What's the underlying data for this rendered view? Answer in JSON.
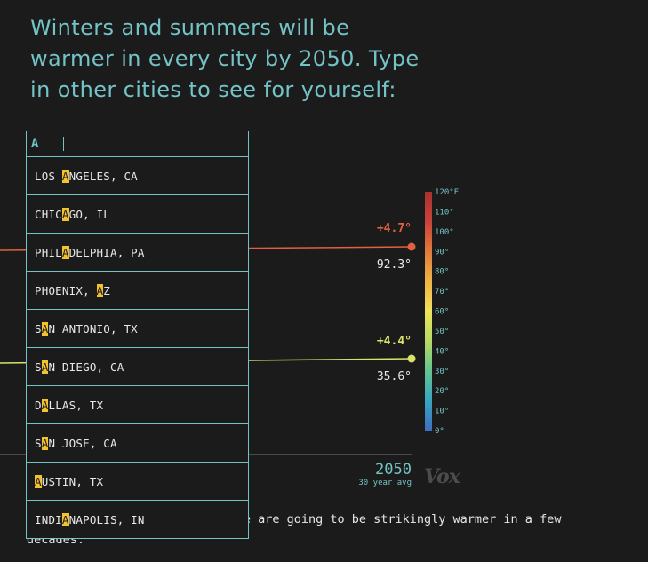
{
  "headline": "Winters and summers will be warmer in every city by 2050. Type in other cities to see for yourself:",
  "search": {
    "value": "A",
    "query": "A",
    "results": [
      {
        "label": "LOS ANGELES, CA"
      },
      {
        "label": "CHICAGO, IL"
      },
      {
        "label": "PHILADELPHIA, PA"
      },
      {
        "label": "PHOENIX, AZ"
      },
      {
        "label": "SAN ANTONIO, TX"
      },
      {
        "label": "SAN DIEGO, CA"
      },
      {
        "label": "DALLAS, TX"
      },
      {
        "label": "SAN JOSE, CA"
      },
      {
        "label": "AUSTIN, TX"
      },
      {
        "label": "INDIANAPOLIS, IN"
      }
    ]
  },
  "chart": {
    "year_label": "2050",
    "avg_label": "30 year avg",
    "colors": {
      "summer": "#e2603e",
      "winter": "#d9e36a",
      "axis": "#74c3c7"
    }
  },
  "chart_data": {
    "type": "line",
    "x": [
      "2050"
    ],
    "series": [
      {
        "change": "+4.7°",
        "end_value": 92.3,
        "end_label": "92.3°"
      },
      {
        "change": "+4.4°",
        "end_value": 35.6,
        "end_label": "35.6°"
      }
    ],
    "color_scale": {
      "unit": "°F",
      "range": [
        0,
        120
      ],
      "tick_labels": [
        "120°F",
        "110°",
        "100°",
        "90°",
        "80°",
        "70°",
        "60°",
        "50°",
        "40°",
        "30°",
        "20°",
        "10°",
        "0°"
      ],
      "colors": [
        "#3d6fbf",
        "#3aa3c4",
        "#63c48f",
        "#b6da64",
        "#efe25a",
        "#f0b347",
        "#e07a3a",
        "#c8433a",
        "#a8322e"
      ]
    }
  },
  "logo": "Vox",
  "body_text": "In any case, the places we live are going to be strikingly warmer in a few decades."
}
